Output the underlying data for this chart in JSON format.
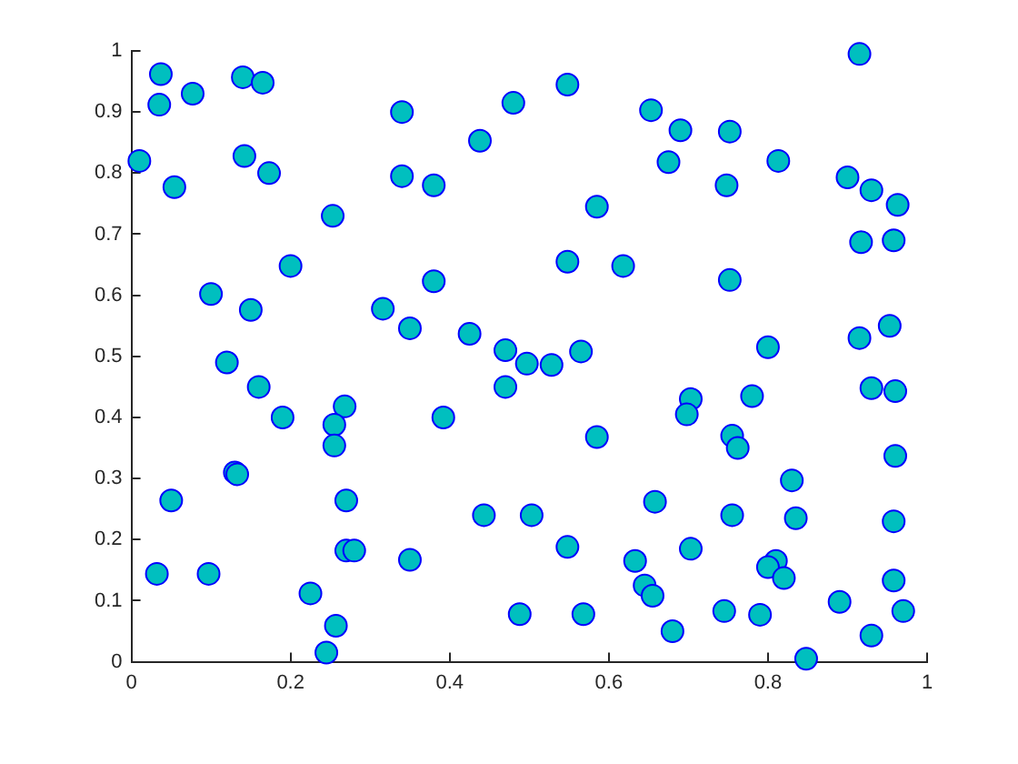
{
  "chart_data": {
    "type": "scatter",
    "marker": "circle",
    "grid": false,
    "xlim": [
      0,
      1
    ],
    "xticks": [
      0,
      0.2,
      0.4,
      0.6,
      0.8,
      1
    ],
    "ylim": [
      0,
      1
    ],
    "yticks": [
      0,
      0.1,
      0.2,
      0.3,
      0.4,
      0.5,
      0.6,
      0.7,
      0.8,
      0.9,
      1
    ],
    "series": [
      {
        "color": "#00bfbf",
        "x": [
          0.037,
          0.035,
          0.077,
          0.01,
          0.054,
          0.14,
          0.165,
          0.142,
          0.173,
          0.34,
          0.34,
          0.38,
          0.438,
          0.48,
          0.548,
          0.253,
          0.2,
          0.1,
          0.15,
          0.316,
          0.35,
          0.38,
          0.425,
          0.47,
          0.497,
          0.528,
          0.565,
          0.548,
          0.585,
          0.618,
          0.653,
          0.69,
          0.675,
          0.752,
          0.748,
          0.813,
          0.752,
          0.915,
          0.9,
          0.93,
          0.963,
          0.917,
          0.958,
          0.915,
          0.953,
          0.93,
          0.96,
          0.96,
          0.958,
          0.958,
          0.97,
          0.93,
          0.89,
          0.848,
          0.83,
          0.835,
          0.8,
          0.78,
          0.755,
          0.762,
          0.755,
          0.81,
          0.8,
          0.82,
          0.79,
          0.745,
          0.703,
          0.698,
          0.703,
          0.68,
          0.658,
          0.633,
          0.645,
          0.655,
          0.585,
          0.548,
          0.568,
          0.488,
          0.503,
          0.443,
          0.47,
          0.392,
          0.35,
          0.268,
          0.255,
          0.255,
          0.27,
          0.27,
          0.28,
          0.225,
          0.257,
          0.245,
          0.19,
          0.16,
          0.12,
          0.13,
          0.133,
          0.05,
          0.032,
          0.097
        ],
        "values": [
          0.962,
          0.912,
          0.93,
          0.82,
          0.777,
          0.957,
          0.948,
          0.828,
          0.8,
          0.9,
          0.795,
          0.78,
          0.853,
          0.915,
          0.945,
          0.73,
          0.648,
          0.602,
          0.576,
          0.578,
          0.546,
          0.623,
          0.537,
          0.51,
          0.488,
          0.486,
          0.508,
          0.655,
          0.745,
          0.648,
          0.903,
          0.87,
          0.818,
          0.868,
          0.78,
          0.82,
          0.625,
          0.995,
          0.793,
          0.772,
          0.748,
          0.687,
          0.69,
          0.53,
          0.55,
          0.448,
          0.443,
          0.337,
          0.23,
          0.133,
          0.083,
          0.043,
          0.098,
          0.005,
          0.297,
          0.235,
          0.515,
          0.435,
          0.37,
          0.35,
          0.24,
          0.165,
          0.155,
          0.137,
          0.077,
          0.083,
          0.43,
          0.405,
          0.185,
          0.05,
          0.262,
          0.165,
          0.125,
          0.108,
          0.368,
          0.188,
          0.078,
          0.078,
          0.24,
          0.24,
          0.45,
          0.4,
          0.167,
          0.418,
          0.388,
          0.354,
          0.264,
          0.182,
          0.182,
          0.112,
          0.059,
          0.015,
          0.4,
          0.45,
          0.49,
          0.31,
          0.307,
          0.264,
          0.144,
          0.144
        ]
      }
    ]
  }
}
